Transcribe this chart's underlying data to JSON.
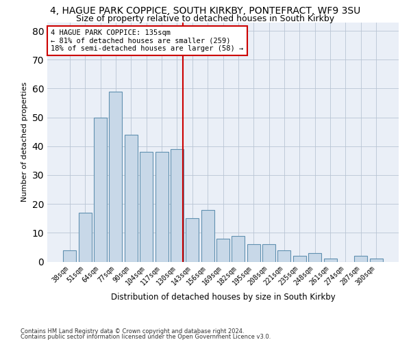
{
  "title": "4, HAGUE PARK COPPICE, SOUTH KIRKBY, PONTEFRACT, WF9 3SU",
  "subtitle": "Size of property relative to detached houses in South Kirkby",
  "xlabel": "Distribution of detached houses by size in South Kirkby",
  "ylabel": "Number of detached properties",
  "categories": [
    "38sqm",
    "51sqm",
    "64sqm",
    "77sqm",
    "90sqm",
    "104sqm",
    "117sqm",
    "130sqm",
    "143sqm",
    "156sqm",
    "169sqm",
    "182sqm",
    "195sqm",
    "208sqm",
    "221sqm",
    "235sqm",
    "248sqm",
    "261sqm",
    "274sqm",
    "287sqm",
    "300sqm"
  ],
  "values": [
    4,
    17,
    50,
    59,
    44,
    38,
    38,
    39,
    15,
    18,
    8,
    9,
    6,
    6,
    4,
    2,
    3,
    1,
    0,
    2,
    1
  ],
  "bar_color": "#c8d8e8",
  "bar_edge_color": "#6090b0",
  "vline_color": "#cc0000",
  "annotation_text": "4 HAGUE PARK COPPICE: 135sqm\n← 81% of detached houses are smaller (259)\n18% of semi-detached houses are larger (58) →",
  "annotation_box_color": "#ffffff",
  "annotation_box_edge": "#cc0000",
  "ylim": [
    0,
    83
  ],
  "yticks": [
    0,
    10,
    20,
    30,
    40,
    50,
    60,
    70,
    80
  ],
  "background_color": "#eaeff7",
  "footer_line1": "Contains HM Land Registry data © Crown copyright and database right 2024.",
  "footer_line2": "Contains public sector information licensed under the Open Government Licence v3.0.",
  "title_fontsize": 10,
  "subtitle_fontsize": 9,
  "xlabel_fontsize": 8.5,
  "ylabel_fontsize": 8,
  "footer_fontsize": 6,
  "tick_fontsize": 7
}
